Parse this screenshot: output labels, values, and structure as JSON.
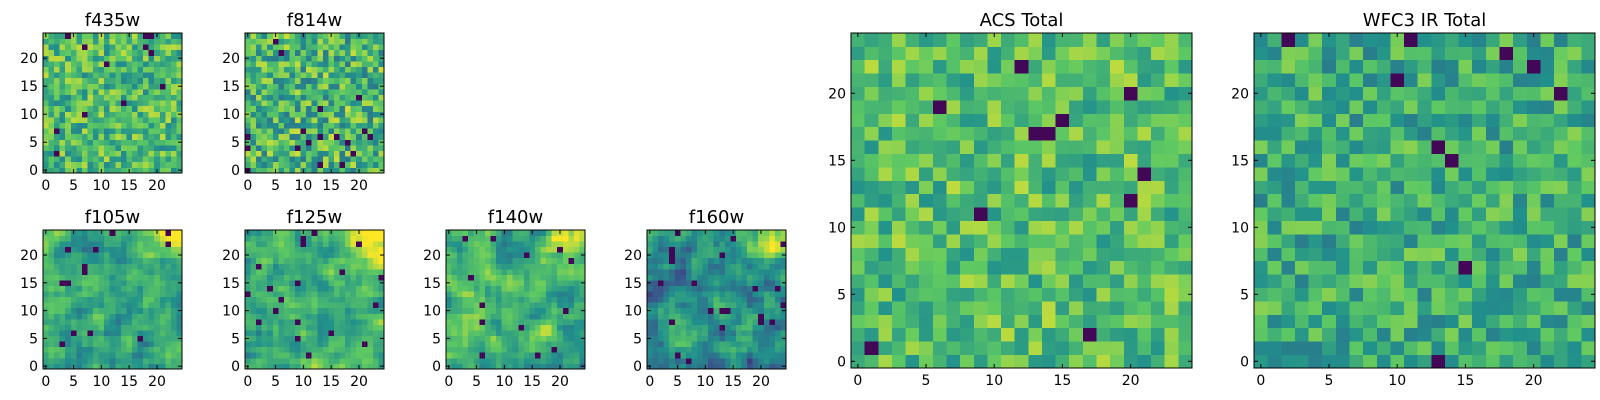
{
  "figure": {
    "type": "heatmap",
    "grid_size": 25,
    "colormap": "viridis",
    "colormap_stops": [
      "#440154",
      "#3b528b",
      "#21918c",
      "#5ec962",
      "#fde725"
    ]
  },
  "chart_data": [
    {
      "type": "heatmap",
      "title": "f435w",
      "xlim": [
        0,
        24
      ],
      "ylim": [
        0,
        24
      ],
      "xticks": [
        "0",
        "5",
        "10",
        "15",
        "20"
      ],
      "yticks": [
        "0",
        "5",
        "10",
        "15",
        "20"
      ],
      "pattern": "noise",
      "mean_level": 0.68,
      "spread": 0.2,
      "seed": 11
    },
    {
      "type": "heatmap",
      "title": "f814w",
      "xlim": [
        0,
        24
      ],
      "ylim": [
        0,
        24
      ],
      "xticks": [
        "0",
        "5",
        "10",
        "15",
        "20"
      ],
      "yticks": [
        "0",
        "5",
        "10",
        "15",
        "20"
      ],
      "pattern": "noise",
      "mean_level": 0.66,
      "spread": 0.24,
      "seed": 23
    },
    {
      "type": "heatmap",
      "title": "f105w",
      "xlim": [
        0,
        24
      ],
      "ylim": [
        0,
        24
      ],
      "xticks": [
        "0",
        "5",
        "10",
        "15",
        "20"
      ],
      "yticks": [
        "0",
        "5",
        "10",
        "15",
        "20"
      ],
      "pattern": "smooth",
      "mean_level": 0.6,
      "spread": 0.22,
      "corner_bright": "top-right",
      "seed": 37
    },
    {
      "type": "heatmap",
      "title": "f125w",
      "xlim": [
        0,
        24
      ],
      "ylim": [
        0,
        24
      ],
      "xticks": [
        "0",
        "5",
        "10",
        "15",
        "20"
      ],
      "yticks": [
        "0",
        "5",
        "10",
        "15",
        "20"
      ],
      "pattern": "smooth",
      "mean_level": 0.66,
      "spread": 0.22,
      "corner_bright": "top-right",
      "seed": 41
    },
    {
      "type": "heatmap",
      "title": "f140w",
      "xlim": [
        0,
        24
      ],
      "ylim": [
        0,
        24
      ],
      "xticks": [
        "0",
        "5",
        "10",
        "15",
        "20"
      ],
      "yticks": [
        "0",
        "5",
        "10",
        "15",
        "20"
      ],
      "pattern": "smooth",
      "mean_level": 0.62,
      "spread": 0.26,
      "corner_bright": "top-right",
      "seed": 53
    },
    {
      "type": "heatmap",
      "title": "f160w",
      "xlim": [
        0,
        24
      ],
      "ylim": [
        0,
        24
      ],
      "xticks": [
        "0",
        "5",
        "10",
        "15",
        "20"
      ],
      "yticks": [
        "0",
        "5",
        "10",
        "15",
        "20"
      ],
      "pattern": "smooth",
      "mean_level": 0.48,
      "spread": 0.26,
      "corner_bright": "top-right",
      "seed": 67
    },
    {
      "type": "heatmap",
      "title": "ACS Total",
      "xlim": [
        0,
        24
      ],
      "ylim": [
        0,
        24
      ],
      "xticks": [
        "0",
        "5",
        "10",
        "15",
        "20"
      ],
      "yticks": [
        "0",
        "5",
        "10",
        "15",
        "20"
      ],
      "pattern": "noise",
      "mean_level": 0.7,
      "spread": 0.18,
      "seed": 79
    },
    {
      "type": "heatmap",
      "title": "WFC3 IR Total",
      "xlim": [
        0,
        24
      ],
      "ylim": [
        0,
        24
      ],
      "xticks": [
        "0",
        "5",
        "10",
        "15",
        "20"
      ],
      "yticks": [
        "0",
        "5",
        "10",
        "15",
        "20"
      ],
      "pattern": "noise",
      "mean_level": 0.62,
      "spread": 0.18,
      "seed": 97
    }
  ]
}
